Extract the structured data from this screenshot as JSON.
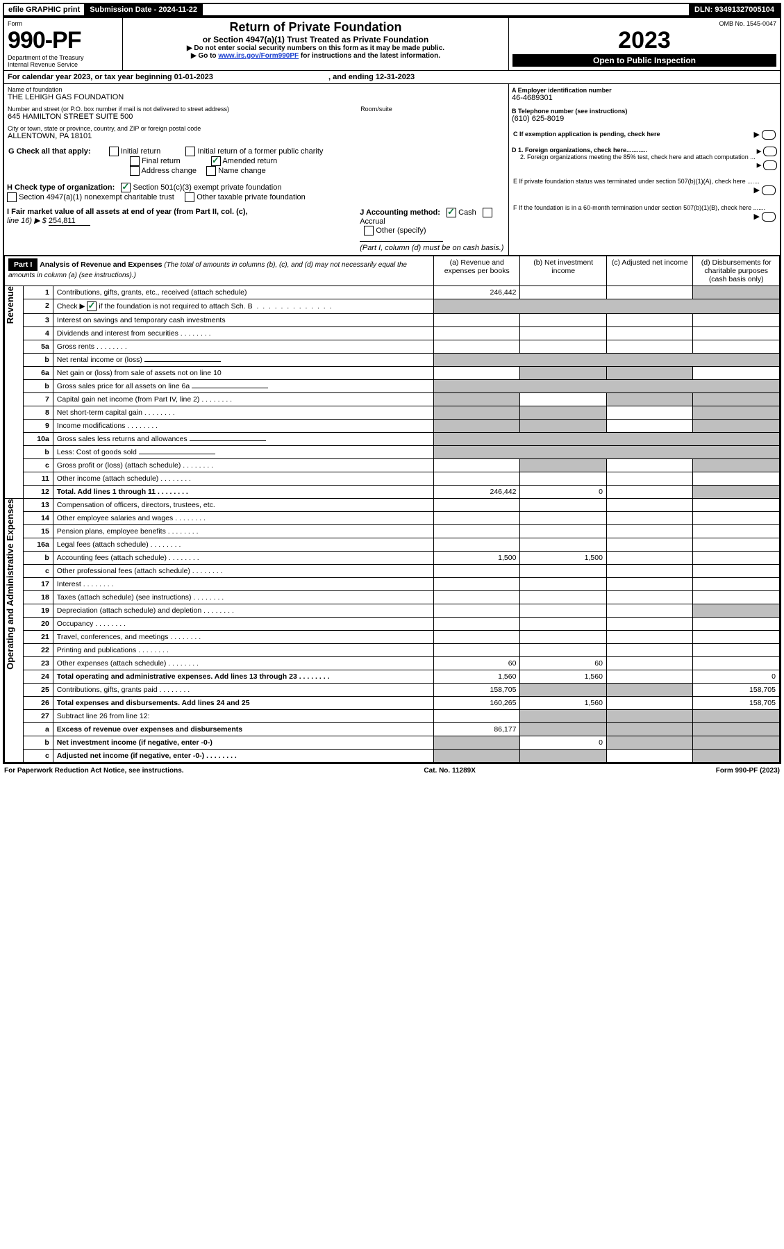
{
  "topbar": {
    "efile": "efile GRAPHIC print",
    "sub_date_label": "Submission Date - 2024-11-22",
    "dln": "DLN: 93491327005104"
  },
  "header": {
    "form_label": "Form",
    "form_no": "990-PF",
    "dept": "Department of the Treasury",
    "irs": "Internal Revenue Service",
    "title": "Return of Private Foundation",
    "subtitle": "or Section 4947(a)(1) Trust Treated as Private Foundation",
    "note1": "▶ Do not enter social security numbers on this form as it may be made public.",
    "note2": "▶ Go to ",
    "note2_link": "www.irs.gov/Form990PF",
    "note2_b": " for instructions and the latest information.",
    "omb": "OMB No. 1545-0047",
    "year": "2023",
    "inspect": "Open to Public Inspection"
  },
  "cal": {
    "line": "For calendar year 2023, or tax year beginning 01-01-2023",
    "ending": ", and ending 12-31-2023"
  },
  "name_block": {
    "label": "Name of foundation",
    "name": "THE LEHIGH GAS FOUNDATION",
    "addr_label": "Number and street (or P.O. box number if mail is not delivered to street address)",
    "addr": "645 HAMILTON STREET SUITE 500",
    "room_label": "Room/suite",
    "city_label": "City or town, state or province, country, and ZIP or foreign postal code",
    "city": "ALLENTOWN, PA  18101"
  },
  "right_block": {
    "a": "A Employer identification number",
    "ein": "46-4689301",
    "b": "B Telephone number (see instructions)",
    "phone": "(610) 625-8019",
    "c": "C If exemption application is pending, check here",
    "d1": "D 1. Foreign organizations, check here............",
    "d2": "2. Foreign organizations meeting the 85% test, check here and attach computation ...",
    "e": "E  If private foundation status was terminated under section 507(b)(1)(A), check here .......",
    "f": "F  If the foundation is in a 60-month termination under section 507(b)(1)(B), check here ......."
  },
  "g": {
    "label": "G Check all that apply:",
    "opts": [
      "Initial return",
      "Final return",
      "Address change",
      "Initial return of a former public charity",
      "Amended return",
      "Name change"
    ]
  },
  "h": {
    "label": "H Check type of organization:",
    "opt1": "Section 501(c)(3) exempt private foundation",
    "opt2": "Section 4947(a)(1) nonexempt charitable trust",
    "opt3": "Other taxable private foundation"
  },
  "i": {
    "label": "I Fair market value of all assets at end of year (from Part II, col. (c),",
    "line16": "line 16) ▶ $",
    "value": "254,811"
  },
  "j": {
    "label": "J Accounting method:",
    "cash": "Cash",
    "accrual": "Accrual",
    "other": "Other (specify)",
    "note": "(Part I, column (d) must be on cash basis.)"
  },
  "part1": {
    "label": "Part I",
    "title": "Analysis of Revenue and Expenses",
    "note": " (The total of amounts in columns (b), (c), and (d) may not necessarily equal the amounts in column (a) (see instructions).)",
    "col_a": "(a)   Revenue and expenses per books",
    "col_b": "(b)   Net investment income",
    "col_c": "(c)   Adjusted net income",
    "col_d": "(d)   Disbursements for charitable purposes (cash basis only)"
  },
  "sections": {
    "revenue": "Revenue",
    "opadmin": "Operating and Administrative Expenses"
  },
  "rows": [
    {
      "n": "1",
      "t": "Contributions, gifts, grants, etc., received (attach schedule)",
      "a": "246,442",
      "shade_d": true
    },
    {
      "n": "2",
      "t": "Check ▶ ",
      "t2": " if the foundation is not required to attach Sch. B",
      "chk": true,
      "dots": true,
      "novals": true
    },
    {
      "n": "3",
      "t": "Interest on savings and temporary cash investments"
    },
    {
      "n": "4",
      "t": "Dividends and interest from securities",
      "dots": true
    },
    {
      "n": "5a",
      "t": "Gross rents",
      "dots": true
    },
    {
      "n": "b",
      "t": "Net rental income or (loss)",
      "shade_bcd": false,
      "blankline": true,
      "shade_all_right": true
    },
    {
      "n": "6a",
      "t": "Net gain or (loss) from sale of assets not on line 10",
      "shade_bc": true
    },
    {
      "n": "b",
      "t": "Gross sales price for all assets on line 6a",
      "blankline": true,
      "shade_all_right": true
    },
    {
      "n": "7",
      "t": "Capital gain net income (from Part IV, line 2)",
      "dots": true,
      "shade_a": true,
      "shade_cd": true
    },
    {
      "n": "8",
      "t": "Net short-term capital gain",
      "dots": true,
      "shade_ab": true,
      "shade_d": true
    },
    {
      "n": "9",
      "t": "Income modifications",
      "dots": true,
      "shade_ab": true,
      "shade_d": true
    },
    {
      "n": "10a",
      "t": "Gross sales less returns and allowances",
      "blankline": true,
      "shade_all_right": true
    },
    {
      "n": "b",
      "t": "Less: Cost of goods sold",
      "dots": true,
      "blankline": true,
      "shade_all_right": true
    },
    {
      "n": "c",
      "t": "Gross profit or (loss) (attach schedule)",
      "dots": true,
      "shade_bd": true
    },
    {
      "n": "11",
      "t": "Other income (attach schedule)",
      "dots": true
    },
    {
      "n": "12",
      "t": "Total. Add lines 1 through 11",
      "bold": true,
      "dots": true,
      "a": "246,442",
      "b": "0",
      "shade_d": true
    },
    {
      "n": "13",
      "t": "Compensation of officers, directors, trustees, etc."
    },
    {
      "n": "14",
      "t": "Other employee salaries and wages",
      "dots": true
    },
    {
      "n": "15",
      "t": "Pension plans, employee benefits",
      "dots": true
    },
    {
      "n": "16a",
      "t": "Legal fees (attach schedule)",
      "dots": true
    },
    {
      "n": "b",
      "t": "Accounting fees (attach schedule)",
      "dots": true,
      "a": "1,500",
      "b": "1,500"
    },
    {
      "n": "c",
      "t": "Other professional fees (attach schedule)",
      "dots": true
    },
    {
      "n": "17",
      "t": "Interest",
      "dots": true
    },
    {
      "n": "18",
      "t": "Taxes (attach schedule) (see instructions)",
      "dots": true
    },
    {
      "n": "19",
      "t": "Depreciation (attach schedule) and depletion",
      "dots": true,
      "shade_d": true
    },
    {
      "n": "20",
      "t": "Occupancy",
      "dots": true
    },
    {
      "n": "21",
      "t": "Travel, conferences, and meetings",
      "dots": true
    },
    {
      "n": "22",
      "t": "Printing and publications",
      "dots": true
    },
    {
      "n": "23",
      "t": "Other expenses (attach schedule)",
      "dots": true,
      "a": "60",
      "b": "60"
    },
    {
      "n": "24",
      "t": "Total operating and administrative expenses. Add lines 13 through 23",
      "bold": true,
      "dots": true,
      "a": "1,560",
      "b": "1,560",
      "d": "0",
      "twoLine": true
    },
    {
      "n": "25",
      "t": "Contributions, gifts, grants paid",
      "dots": true,
      "a": "158,705",
      "d": "158,705",
      "shade_bc": true
    },
    {
      "n": "26",
      "t": "Total expenses and disbursements. Add lines 24 and 25",
      "bold": true,
      "a": "160,265",
      "b": "1,560",
      "d": "158,705",
      "twoLine": true
    },
    {
      "n": "27",
      "t": "Subtract line 26 from line 12:",
      "shade_bcd_all": true
    },
    {
      "n": "a",
      "t": "Excess of revenue over expenses and disbursements",
      "bold": true,
      "a": "86,177",
      "shade_bcd_all": true
    },
    {
      "n": "b",
      "t": "Net investment income (if negative, enter -0-)",
      "bold": true,
      "b": "0",
      "shade_a": true,
      "shade_cd": true
    },
    {
      "n": "c",
      "t": "Adjusted net income (if negative, enter -0-)",
      "bold": true,
      "dots": true,
      "shade_ab": true,
      "shade_d": true
    }
  ],
  "footer": {
    "left": "For Paperwork Reduction Act Notice, see instructions.",
    "mid": "Cat. No. 11289X",
    "right": "Form 990-PF (2023)"
  },
  "colors": {
    "green": "#0a7a3a",
    "link": "#1a3fcf",
    "shade": "#bfbfbf"
  }
}
